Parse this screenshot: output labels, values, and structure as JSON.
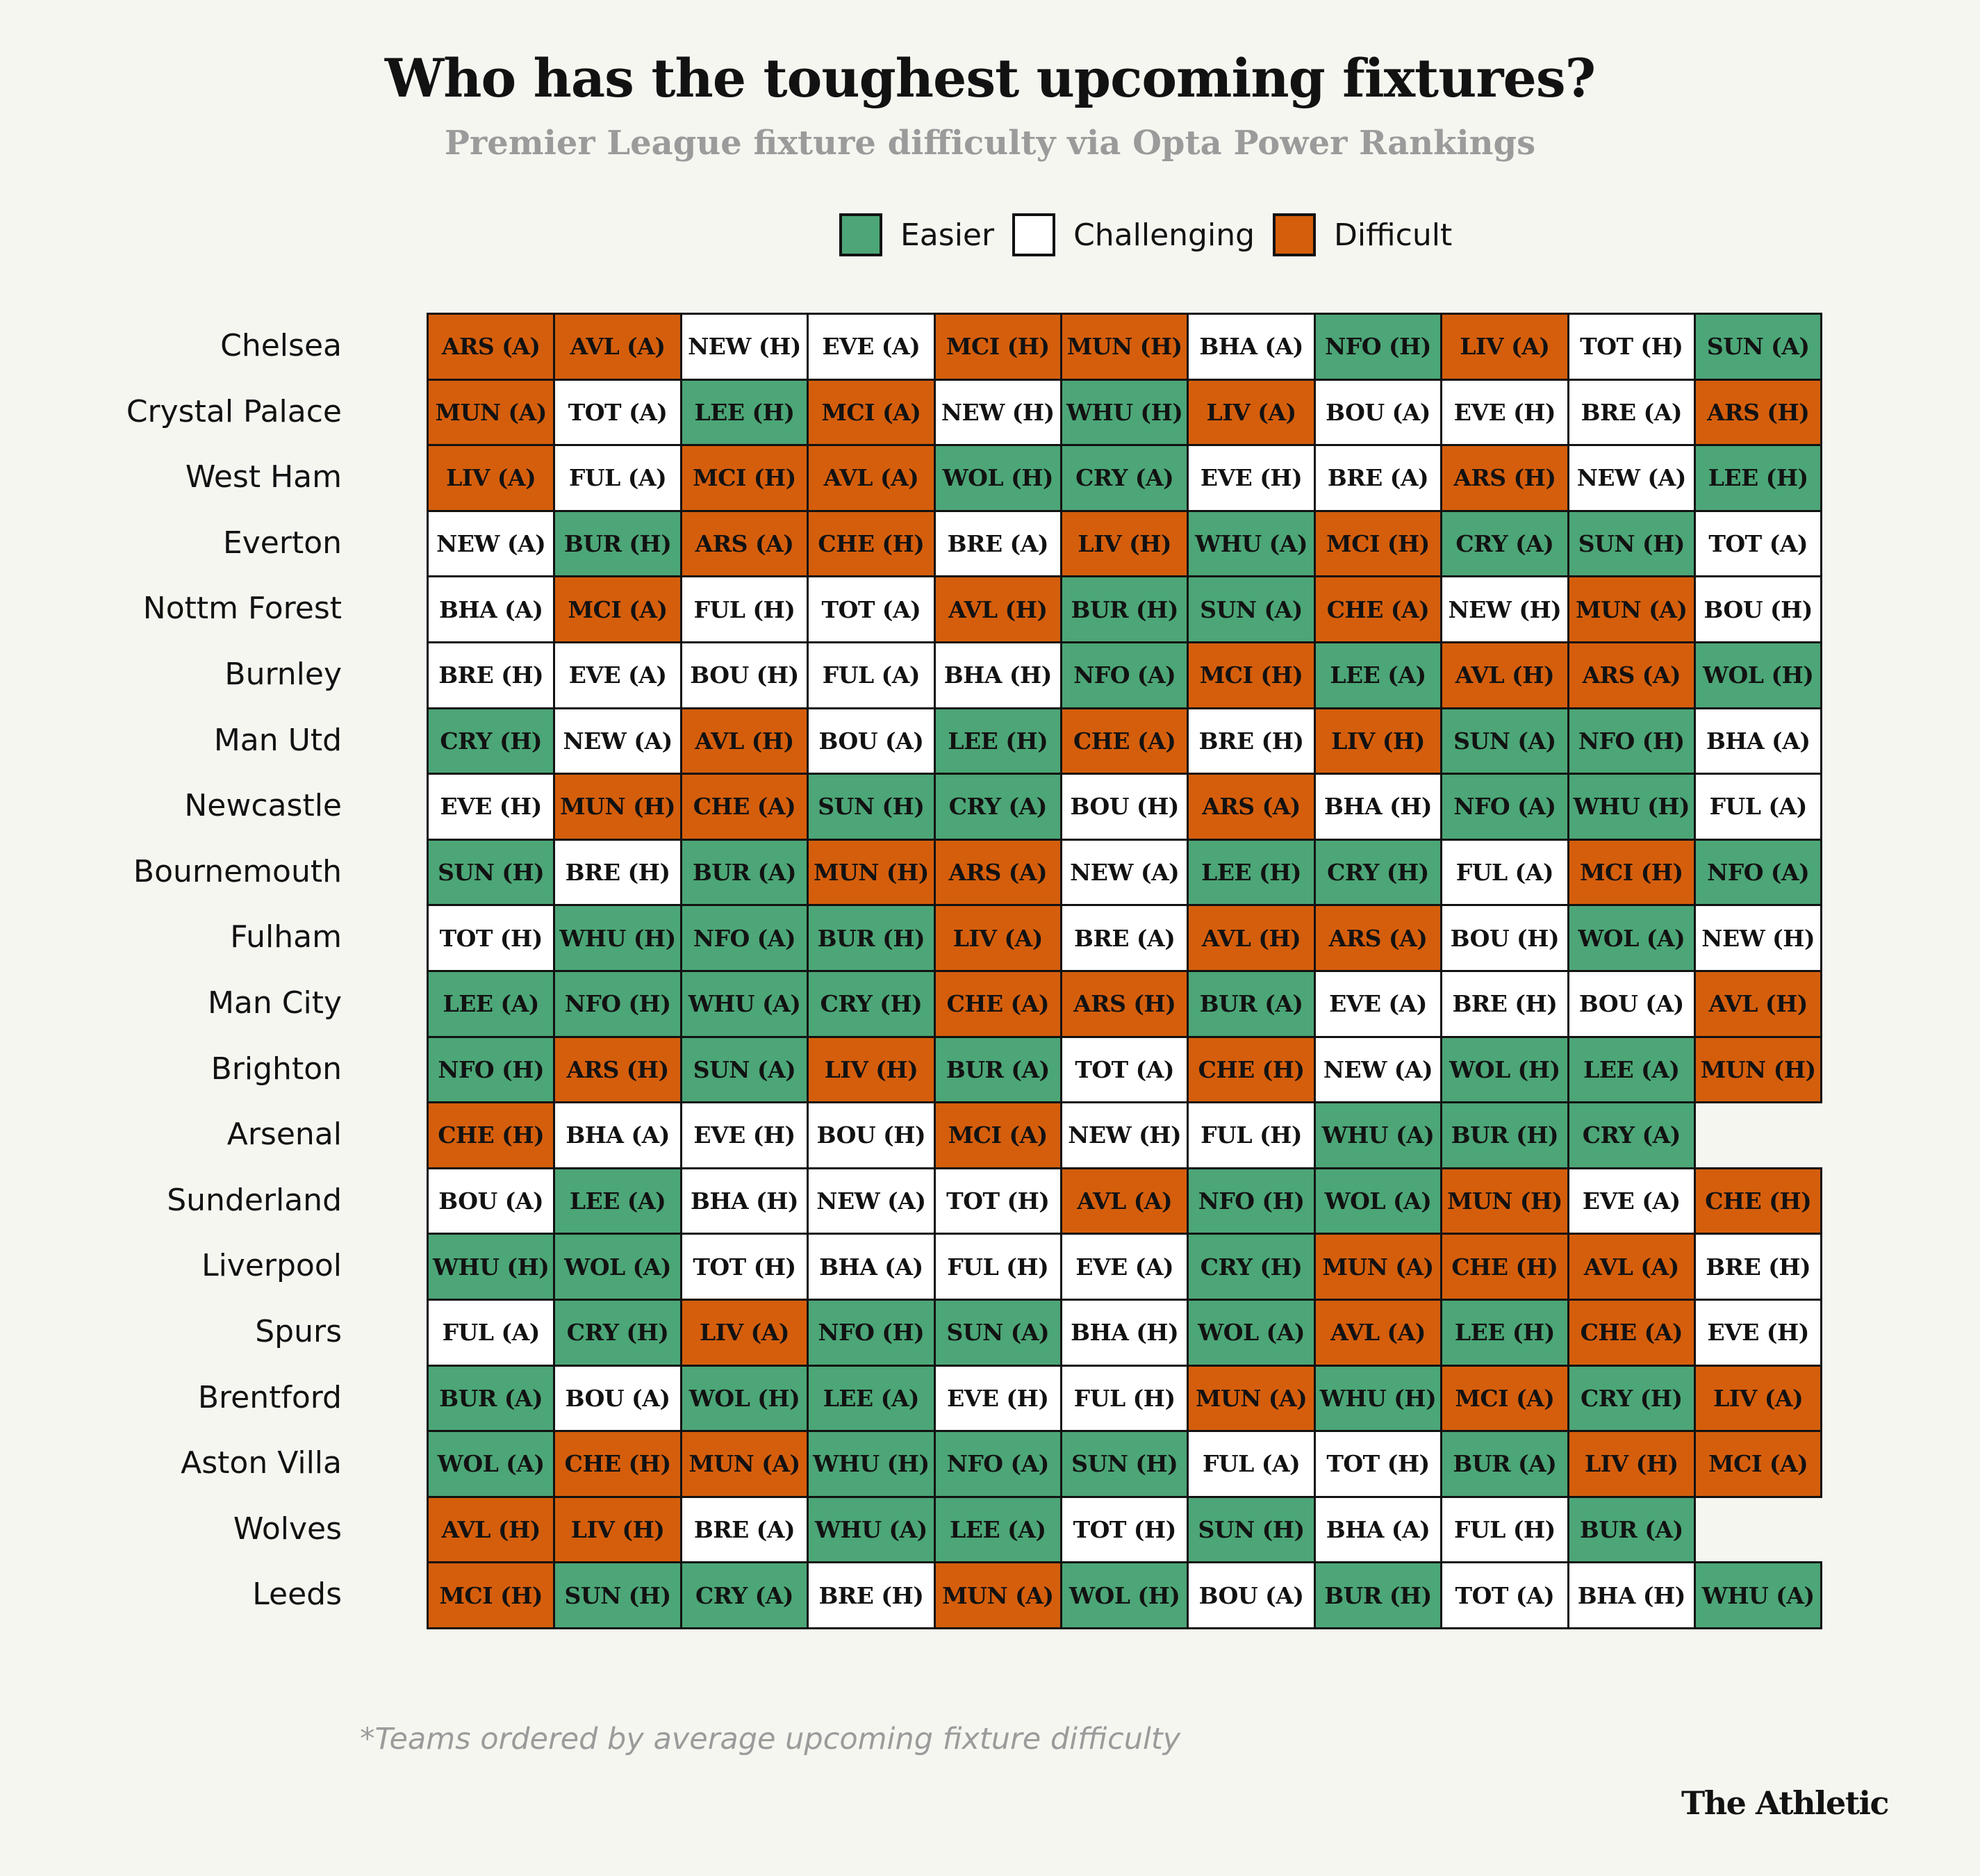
{
  "title": "Who has the toughest upcoming fixtures?",
  "subtitle": "Premier League fixture difficulty via Opta Power Rankings",
  "legend": [
    {
      "key": "E",
      "label": "Easier",
      "color": "#4ca677"
    },
    {
      "key": "C",
      "label": "Challenging",
      "color": "#ffffff"
    },
    {
      "key": "D",
      "label": "Difficult",
      "color": "#d55e0c"
    }
  ],
  "footnote": "*Teams ordered by average upcoming fixture difficulty",
  "brand": "The Athletic",
  "chart_data": {
    "type": "table",
    "difficulty_key": {
      "E": "Easier",
      "C": "Challenging",
      "D": "Difficult"
    },
    "rows": [
      {
        "team": "Chelsea",
        "fixtures": [
          [
            "ARS (A)",
            "D"
          ],
          [
            "AVL (A)",
            "D"
          ],
          [
            "NEW (H)",
            "C"
          ],
          [
            "EVE (A)",
            "C"
          ],
          [
            "MCI (H)",
            "D"
          ],
          [
            "MUN (H)",
            "D"
          ],
          [
            "BHA (A)",
            "C"
          ],
          [
            "NFO (H)",
            "E"
          ],
          [
            "LIV (A)",
            "D"
          ],
          [
            "TOT (H)",
            "C"
          ],
          [
            "SUN (A)",
            "E"
          ]
        ]
      },
      {
        "team": "Crystal Palace",
        "fixtures": [
          [
            "MUN (A)",
            "D"
          ],
          [
            "TOT (A)",
            "C"
          ],
          [
            "LEE (H)",
            "E"
          ],
          [
            "MCI (A)",
            "D"
          ],
          [
            "NEW (H)",
            "C"
          ],
          [
            "WHU (H)",
            "E"
          ],
          [
            "LIV (A)",
            "D"
          ],
          [
            "BOU (A)",
            "C"
          ],
          [
            "EVE (H)",
            "C"
          ],
          [
            "BRE (A)",
            "C"
          ],
          [
            "ARS (H)",
            "D"
          ]
        ]
      },
      {
        "team": "West Ham",
        "fixtures": [
          [
            "LIV (A)",
            "D"
          ],
          [
            "FUL (A)",
            "C"
          ],
          [
            "MCI (H)",
            "D"
          ],
          [
            "AVL (A)",
            "D"
          ],
          [
            "WOL (H)",
            "E"
          ],
          [
            "CRY (A)",
            "E"
          ],
          [
            "EVE (H)",
            "C"
          ],
          [
            "BRE (A)",
            "C"
          ],
          [
            "ARS (H)",
            "D"
          ],
          [
            "NEW (A)",
            "C"
          ],
          [
            "LEE (H)",
            "E"
          ]
        ]
      },
      {
        "team": "Everton",
        "fixtures": [
          [
            "NEW (A)",
            "C"
          ],
          [
            "BUR (H)",
            "E"
          ],
          [
            "ARS (A)",
            "D"
          ],
          [
            "CHE (H)",
            "D"
          ],
          [
            "BRE (A)",
            "C"
          ],
          [
            "LIV (H)",
            "D"
          ],
          [
            "WHU (A)",
            "E"
          ],
          [
            "MCI (H)",
            "D"
          ],
          [
            "CRY (A)",
            "E"
          ],
          [
            "SUN (H)",
            "E"
          ],
          [
            "TOT (A)",
            "C"
          ]
        ]
      },
      {
        "team": "Nottm Forest",
        "fixtures": [
          [
            "BHA (A)",
            "C"
          ],
          [
            "MCI (A)",
            "D"
          ],
          [
            "FUL (H)",
            "C"
          ],
          [
            "TOT (A)",
            "C"
          ],
          [
            "AVL (H)",
            "D"
          ],
          [
            "BUR (H)",
            "E"
          ],
          [
            "SUN (A)",
            "E"
          ],
          [
            "CHE (A)",
            "D"
          ],
          [
            "NEW (H)",
            "C"
          ],
          [
            "MUN (A)",
            "D"
          ],
          [
            "BOU (H)",
            "C"
          ]
        ]
      },
      {
        "team": "Burnley",
        "fixtures": [
          [
            "BRE (H)",
            "C"
          ],
          [
            "EVE (A)",
            "C"
          ],
          [
            "BOU (H)",
            "C"
          ],
          [
            "FUL (A)",
            "C"
          ],
          [
            "BHA (H)",
            "C"
          ],
          [
            "NFO (A)",
            "E"
          ],
          [
            "MCI (H)",
            "D"
          ],
          [
            "LEE (A)",
            "E"
          ],
          [
            "AVL (H)",
            "D"
          ],
          [
            "ARS (A)",
            "D"
          ],
          [
            "WOL (H)",
            "E"
          ]
        ]
      },
      {
        "team": "Man Utd",
        "fixtures": [
          [
            "CRY (H)",
            "E"
          ],
          [
            "NEW (A)",
            "C"
          ],
          [
            "AVL (H)",
            "D"
          ],
          [
            "BOU (A)",
            "C"
          ],
          [
            "LEE (H)",
            "E"
          ],
          [
            "CHE (A)",
            "D"
          ],
          [
            "BRE (H)",
            "C"
          ],
          [
            "LIV (H)",
            "D"
          ],
          [
            "SUN (A)",
            "E"
          ],
          [
            "NFO (H)",
            "E"
          ],
          [
            "BHA (A)",
            "C"
          ]
        ]
      },
      {
        "team": "Newcastle",
        "fixtures": [
          [
            "EVE (H)",
            "C"
          ],
          [
            "MUN (H)",
            "D"
          ],
          [
            "CHE (A)",
            "D"
          ],
          [
            "SUN (H)",
            "E"
          ],
          [
            "CRY (A)",
            "E"
          ],
          [
            "BOU (H)",
            "C"
          ],
          [
            "ARS (A)",
            "D"
          ],
          [
            "BHA (H)",
            "C"
          ],
          [
            "NFO (A)",
            "E"
          ],
          [
            "WHU (H)",
            "E"
          ],
          [
            "FUL (A)",
            "C"
          ]
        ]
      },
      {
        "team": "Bournemouth",
        "fixtures": [
          [
            "SUN (H)",
            "E"
          ],
          [
            "BRE (H)",
            "C"
          ],
          [
            "BUR (A)",
            "E"
          ],
          [
            "MUN (H)",
            "D"
          ],
          [
            "ARS (A)",
            "D"
          ],
          [
            "NEW (A)",
            "C"
          ],
          [
            "LEE (H)",
            "E"
          ],
          [
            "CRY (H)",
            "E"
          ],
          [
            "FUL (A)",
            "C"
          ],
          [
            "MCI (H)",
            "D"
          ],
          [
            "NFO (A)",
            "E"
          ]
        ]
      },
      {
        "team": "Fulham",
        "fixtures": [
          [
            "TOT (H)",
            "C"
          ],
          [
            "WHU (H)",
            "E"
          ],
          [
            "NFO (A)",
            "E"
          ],
          [
            "BUR (H)",
            "E"
          ],
          [
            "LIV (A)",
            "D"
          ],
          [
            "BRE (A)",
            "C"
          ],
          [
            "AVL (H)",
            "D"
          ],
          [
            "ARS (A)",
            "D"
          ],
          [
            "BOU (H)",
            "C"
          ],
          [
            "WOL (A)",
            "E"
          ],
          [
            "NEW (H)",
            "C"
          ]
        ]
      },
      {
        "team": "Man City",
        "fixtures": [
          [
            "LEE (A)",
            "E"
          ],
          [
            "NFO (H)",
            "E"
          ],
          [
            "WHU (A)",
            "E"
          ],
          [
            "CRY (H)",
            "E"
          ],
          [
            "CHE (A)",
            "D"
          ],
          [
            "ARS (H)",
            "D"
          ],
          [
            "BUR (A)",
            "E"
          ],
          [
            "EVE (A)",
            "C"
          ],
          [
            "BRE (H)",
            "C"
          ],
          [
            "BOU (A)",
            "C"
          ],
          [
            "AVL (H)",
            "D"
          ]
        ]
      },
      {
        "team": "Brighton",
        "fixtures": [
          [
            "NFO (H)",
            "E"
          ],
          [
            "ARS (H)",
            "D"
          ],
          [
            "SUN (A)",
            "E"
          ],
          [
            "LIV (H)",
            "D"
          ],
          [
            "BUR (A)",
            "E"
          ],
          [
            "TOT (A)",
            "C"
          ],
          [
            "CHE (H)",
            "D"
          ],
          [
            "NEW (A)",
            "C"
          ],
          [
            "WOL (H)",
            "E"
          ],
          [
            "LEE (A)",
            "E"
          ],
          [
            "MUN (H)",
            "D"
          ]
        ]
      },
      {
        "team": "Arsenal",
        "fixtures": [
          [
            "CHE (H)",
            "D"
          ],
          [
            "BHA (A)",
            "C"
          ],
          [
            "EVE (H)",
            "C"
          ],
          [
            "BOU (H)",
            "C"
          ],
          [
            "MCI (A)",
            "D"
          ],
          [
            "NEW (H)",
            "C"
          ],
          [
            "FUL (H)",
            "C"
          ],
          [
            "WHU (A)",
            "E"
          ],
          [
            "BUR (H)",
            "E"
          ],
          [
            "CRY (A)",
            "E"
          ]
        ]
      },
      {
        "team": "Sunderland",
        "fixtures": [
          [
            "BOU (A)",
            "C"
          ],
          [
            "LEE (A)",
            "E"
          ],
          [
            "BHA (H)",
            "C"
          ],
          [
            "NEW (A)",
            "C"
          ],
          [
            "TOT (H)",
            "C"
          ],
          [
            "AVL (A)",
            "D"
          ],
          [
            "NFO (H)",
            "E"
          ],
          [
            "WOL (A)",
            "E"
          ],
          [
            "MUN (H)",
            "D"
          ],
          [
            "EVE (A)",
            "C"
          ],
          [
            "CHE (H)",
            "D"
          ]
        ]
      },
      {
        "team": "Liverpool",
        "fixtures": [
          [
            "WHU (H)",
            "E"
          ],
          [
            "WOL (A)",
            "E"
          ],
          [
            "TOT (H)",
            "C"
          ],
          [
            "BHA (A)",
            "C"
          ],
          [
            "FUL (H)",
            "C"
          ],
          [
            "EVE (A)",
            "C"
          ],
          [
            "CRY (H)",
            "E"
          ],
          [
            "MUN (A)",
            "D"
          ],
          [
            "CHE (H)",
            "D"
          ],
          [
            "AVL (A)",
            "D"
          ],
          [
            "BRE (H)",
            "C"
          ]
        ]
      },
      {
        "team": "Spurs",
        "fixtures": [
          [
            "FUL (A)",
            "C"
          ],
          [
            "CRY (H)",
            "E"
          ],
          [
            "LIV (A)",
            "D"
          ],
          [
            "NFO (H)",
            "E"
          ],
          [
            "SUN (A)",
            "E"
          ],
          [
            "BHA (H)",
            "C"
          ],
          [
            "WOL (A)",
            "E"
          ],
          [
            "AVL (A)",
            "D"
          ],
          [
            "LEE (H)",
            "E"
          ],
          [
            "CHE (A)",
            "D"
          ],
          [
            "EVE (H)",
            "C"
          ]
        ]
      },
      {
        "team": "Brentford",
        "fixtures": [
          [
            "BUR (A)",
            "E"
          ],
          [
            "BOU (A)",
            "C"
          ],
          [
            "WOL (H)",
            "E"
          ],
          [
            "LEE (A)",
            "E"
          ],
          [
            "EVE (H)",
            "C"
          ],
          [
            "FUL (H)",
            "C"
          ],
          [
            "MUN (A)",
            "D"
          ],
          [
            "WHU (H)",
            "E"
          ],
          [
            "MCI (A)",
            "D"
          ],
          [
            "CRY (H)",
            "E"
          ],
          [
            "LIV (A)",
            "D"
          ]
        ]
      },
      {
        "team": "Aston Villa",
        "fixtures": [
          [
            "WOL (A)",
            "E"
          ],
          [
            "CHE (H)",
            "D"
          ],
          [
            "MUN (A)",
            "D"
          ],
          [
            "WHU (H)",
            "E"
          ],
          [
            "NFO (A)",
            "E"
          ],
          [
            "SUN (H)",
            "E"
          ],
          [
            "FUL (A)",
            "C"
          ],
          [
            "TOT (H)",
            "C"
          ],
          [
            "BUR (A)",
            "E"
          ],
          [
            "LIV (H)",
            "D"
          ],
          [
            "MCI (A)",
            "D"
          ]
        ]
      },
      {
        "team": "Wolves",
        "fixtures": [
          [
            "AVL (H)",
            "D"
          ],
          [
            "LIV (H)",
            "D"
          ],
          [
            "BRE (A)",
            "C"
          ],
          [
            "WHU (A)",
            "E"
          ],
          [
            "LEE (A)",
            "E"
          ],
          [
            "TOT (H)",
            "C"
          ],
          [
            "SUN (H)",
            "E"
          ],
          [
            "BHA (A)",
            "C"
          ],
          [
            "FUL (H)",
            "C"
          ],
          [
            "BUR (A)",
            "E"
          ]
        ]
      },
      {
        "team": "Leeds",
        "fixtures": [
          [
            "MCI (H)",
            "D"
          ],
          [
            "SUN (H)",
            "E"
          ],
          [
            "CRY (A)",
            "E"
          ],
          [
            "BRE (H)",
            "C"
          ],
          [
            "MUN (A)",
            "D"
          ],
          [
            "WOL (H)",
            "E"
          ],
          [
            "BOU (A)",
            "C"
          ],
          [
            "BUR (H)",
            "E"
          ],
          [
            "TOT (A)",
            "C"
          ],
          [
            "BHA (H)",
            "C"
          ],
          [
            "WHU (A)",
            "E"
          ]
        ]
      }
    ]
  }
}
